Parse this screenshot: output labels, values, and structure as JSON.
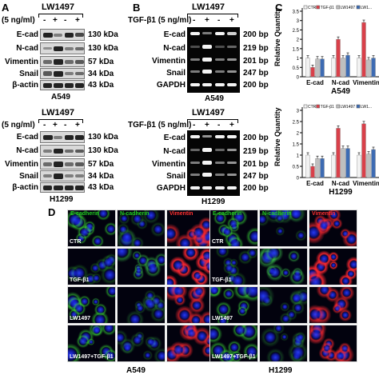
{
  "panels": {
    "A": "A",
    "B": "B",
    "C": "C",
    "D": "D"
  },
  "panel_a": {
    "top": {
      "treatment_label": "(5 ng/ml)",
      "lane_signs": [
        "-",
        "+",
        "-",
        "+"
      ],
      "drug_label": "LW1497",
      "rows": [
        {
          "name": "E-cad",
          "size": "130 kDa"
        },
        {
          "name": "N-cad",
          "size": "130 kDa"
        },
        {
          "name": "Vimentin",
          "size": "57 kDa"
        },
        {
          "name": "Snail",
          "size": "34 kDa"
        },
        {
          "name": "β-actin",
          "size": "43 kDa"
        }
      ],
      "cell_line": "A549"
    },
    "bottom": {
      "treatment_label": "(5 ng/ml)",
      "lane_signs": [
        "-",
        "+",
        "-",
        "+"
      ],
      "drug_label": "LW1497",
      "rows": [
        {
          "name": "E-cad",
          "size": "130 kDa"
        },
        {
          "name": "N-cad",
          "size": "130 kDa"
        },
        {
          "name": "Vimentin",
          "size": "57 kDa"
        },
        {
          "name": "Snail",
          "size": "34 kDa"
        },
        {
          "name": "β-actin",
          "size": "43 kDa"
        }
      ],
      "cell_line": "H1299"
    }
  },
  "panel_b": {
    "top": {
      "treatment_label": "TGF-β1 (5 ng/ml)",
      "lane_signs": [
        "-",
        "+",
        "-",
        "+"
      ],
      "drug_label": "LW1497",
      "rows": [
        {
          "name": "E-cad",
          "size": "200 bp"
        },
        {
          "name": "N-cad",
          "size": "219 bp"
        },
        {
          "name": "Vimentin",
          "size": "201 bp"
        },
        {
          "name": "Snail",
          "size": "247 bp"
        },
        {
          "name": "GAPDH",
          "size": "200 bp"
        }
      ],
      "cell_line": "A549"
    },
    "bottom": {
      "treatment_label": "TGF-β1 (5 ng/ml)",
      "lane_signs": [
        "-",
        "+",
        "-",
        "+"
      ],
      "drug_label": "LW1497",
      "rows": [
        {
          "name": "E-cad",
          "size": "200 bp"
        },
        {
          "name": "N-cad",
          "size": "219 bp"
        },
        {
          "name": "Vimentin",
          "size": "201 bp"
        },
        {
          "name": "Snail",
          "size": "247 bp"
        },
        {
          "name": "GAPDH",
          "size": "200 bp"
        }
      ],
      "cell_line": "H1299"
    }
  },
  "panel_d": {
    "columns": [
      "E-cadherin",
      "N-cadherin",
      "Vimentin"
    ],
    "column_colors": [
      "#22cc22",
      "#22cc22",
      "#ff3030"
    ],
    "row_labels": [
      "CTR",
      "TGF-β1",
      "LW1497",
      "LW1497+TGF-β1"
    ],
    "left_cell_line": "A549",
    "right_cell_line": "H1299"
  },
  "chart_data": [
    {
      "type": "bar",
      "title": "A549",
      "ylabel": "Relative Quantity",
      "ylim": [
        0,
        3.5
      ],
      "yticks": [
        "0",
        "0.5",
        "1",
        "1.5",
        "2",
        "2.5",
        "3",
        "3.5"
      ],
      "categories": [
        "E-cad",
        "N-cad",
        "Vimentin"
      ],
      "legend": [
        "CTR",
        "TGF-β1",
        "LW1497",
        "LW1..."
      ],
      "series": [
        {
          "name": "CTR",
          "color": "#f2f2f2",
          "values": [
            1.0,
            1.0,
            1.0
          ]
        },
        {
          "name": "TGF-β1",
          "color": "#d9404a",
          "values": [
            0.5,
            2.0,
            2.9
          ]
        },
        {
          "name": "LW1497",
          "color": "#bfbfbf",
          "values": [
            0.95,
            1.0,
            0.9
          ]
        },
        {
          "name": "LW1...",
          "color": "#3d6bb3",
          "values": [
            0.95,
            1.15,
            1.0
          ]
        }
      ]
    },
    {
      "type": "bar",
      "title": "H1299",
      "ylabel": "Relative Quantity",
      "ylim": [
        0,
        3
      ],
      "yticks": [
        "0",
        "0.5",
        "1",
        "1.5",
        "2",
        "2.5",
        "3"
      ],
      "categories": [
        "E-cad",
        "N-cad",
        "Vimentin"
      ],
      "legend": [
        "CTR",
        "TGF-β1",
        "LW1497",
        "LW1..."
      ],
      "series": [
        {
          "name": "CTR",
          "color": "#f2f2f2",
          "values": [
            1.0,
            1.0,
            1.0
          ]
        },
        {
          "name": "TGF-β1",
          "color": "#d9404a",
          "values": [
            0.5,
            2.2,
            2.4
          ]
        },
        {
          "name": "LW1497",
          "color": "#bfbfbf",
          "values": [
            0.85,
            1.3,
            1.05
          ]
        },
        {
          "name": "LW1...",
          "color": "#3d6bb3",
          "values": [
            0.85,
            1.3,
            1.25
          ]
        }
      ]
    }
  ]
}
